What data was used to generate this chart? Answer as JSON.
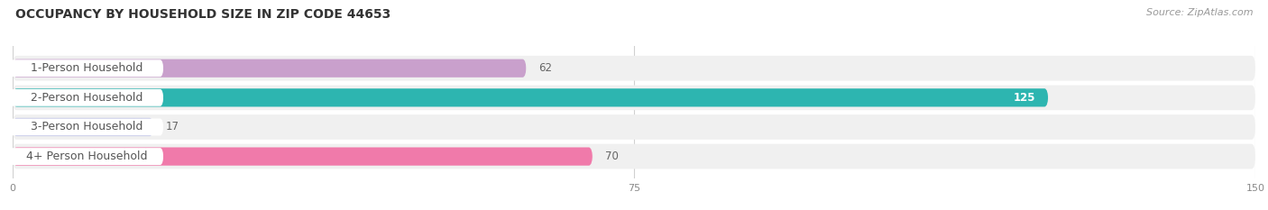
{
  "title": "OCCUPANCY BY HOUSEHOLD SIZE IN ZIP CODE 44653",
  "source": "Source: ZipAtlas.com",
  "categories": [
    "1-Person Household",
    "2-Person Household",
    "3-Person Household",
    "4+ Person Household"
  ],
  "values": [
    62,
    125,
    17,
    70
  ],
  "bar_colors": [
    "#c9a0cc",
    "#2db5b0",
    "#b0b4e0",
    "#f07aaa"
  ],
  "xlim_max": 150,
  "xticks": [
    0,
    75,
    150
  ],
  "title_fontsize": 10,
  "source_fontsize": 8,
  "label_fontsize": 9,
  "value_fontsize": 8.5,
  "bar_height": 0.62,
  "row_bg_color": "#f0f0f0",
  "bar_bg_color": "#e8e8e8",
  "background_color": "#ffffff",
  "label_box_color": "#ffffff",
  "grid_color": "#d0d0d0"
}
